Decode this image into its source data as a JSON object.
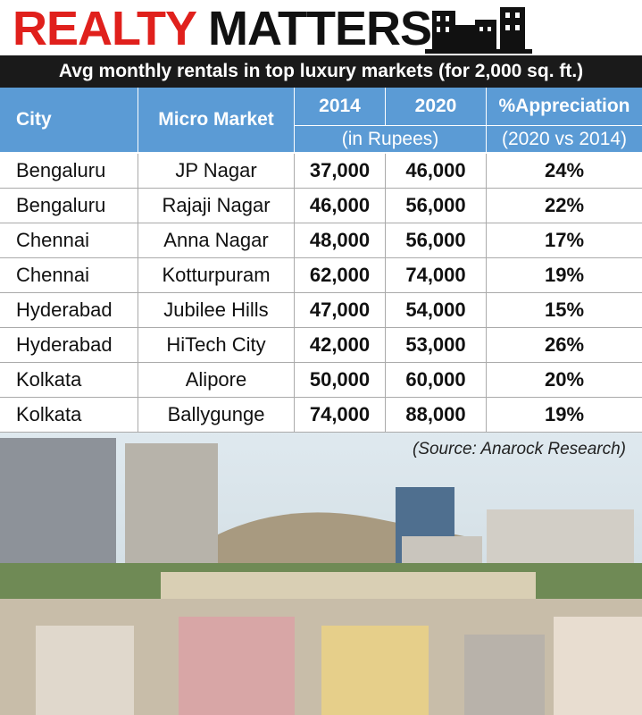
{
  "header": {
    "title_red": "REALTY",
    "title_black": "MATTERS",
    "subtitle": "Avg monthly rentals in top luxury markets (for 2,000 sq. ft.)"
  },
  "table": {
    "columns": [
      "City",
      "Micro Market",
      "2014",
      "2020",
      "%Appreciation"
    ],
    "subheaders": [
      "(in Rupees)",
      "(2020 vs 2014)"
    ],
    "rows": [
      [
        "Bengaluru",
        "JP Nagar",
        "37,000",
        "46,000",
        "24%"
      ],
      [
        "Bengaluru",
        "Rajaji Nagar",
        "46,000",
        "56,000",
        "22%"
      ],
      [
        "Chennai",
        "Anna Nagar",
        "48,000",
        "56,000",
        "17%"
      ],
      [
        "Chennai",
        "Kotturpuram",
        "62,000",
        "74,000",
        "19%"
      ],
      [
        "Hyderabad",
        "Jubilee Hills",
        "47,000",
        "54,000",
        "15%"
      ],
      [
        "Hyderabad",
        "HiTech City",
        "42,000",
        "53,000",
        "26%"
      ],
      [
        "Kolkata",
        "Alipore",
        "50,000",
        "60,000",
        "20%"
      ],
      [
        "Kolkata",
        "Ballygunge",
        "74,000",
        "88,000",
        "19%"
      ]
    ]
  },
  "source": "(Source: Anarock Research)"
}
